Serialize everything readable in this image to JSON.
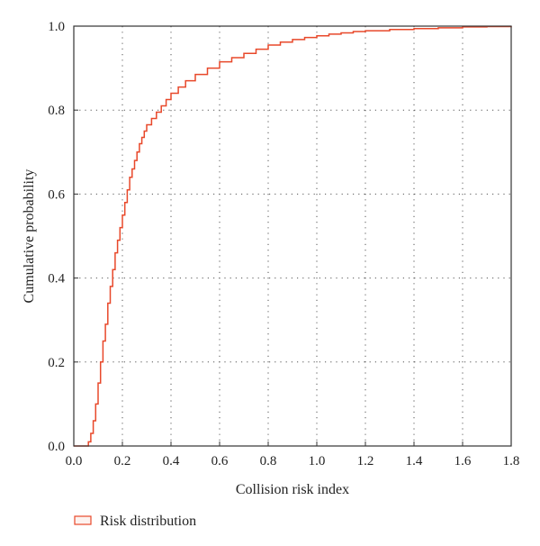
{
  "chart_data": {
    "type": "line",
    "step": true,
    "xlabel": "Collision risk index",
    "ylabel": "Cumulative probability",
    "xlim": [
      0.0,
      1.8
    ],
    "ylim": [
      0.0,
      1.0
    ],
    "xticks": [
      "0.0",
      "0.2",
      "0.4",
      "0.6",
      "0.8",
      "1.0",
      "1.2",
      "1.4",
      "1.6",
      "1.8"
    ],
    "yticks": [
      "0.0",
      "0.2",
      "0.4",
      "0.6",
      "0.8",
      "1.0"
    ],
    "grid": "dotted",
    "legend_position": "bottom-left",
    "series": [
      {
        "name": "Risk distribution",
        "color": "#e8482a",
        "x": [
          0.0,
          0.05,
          0.06,
          0.07,
          0.08,
          0.09,
          0.1,
          0.11,
          0.12,
          0.13,
          0.14,
          0.15,
          0.16,
          0.17,
          0.18,
          0.19,
          0.2,
          0.21,
          0.22,
          0.23,
          0.24,
          0.25,
          0.26,
          0.27,
          0.28,
          0.29,
          0.3,
          0.32,
          0.34,
          0.36,
          0.38,
          0.4,
          0.43,
          0.46,
          0.5,
          0.55,
          0.6,
          0.65,
          0.7,
          0.75,
          0.8,
          0.85,
          0.9,
          0.95,
          1.0,
          1.05,
          1.1,
          1.15,
          1.2,
          1.3,
          1.4,
          1.5,
          1.6,
          1.7,
          1.8
        ],
        "y": [
          0.0,
          0.0,
          0.01,
          0.03,
          0.06,
          0.1,
          0.15,
          0.2,
          0.25,
          0.29,
          0.34,
          0.38,
          0.42,
          0.46,
          0.49,
          0.52,
          0.55,
          0.58,
          0.61,
          0.64,
          0.66,
          0.68,
          0.7,
          0.72,
          0.735,
          0.75,
          0.765,
          0.78,
          0.795,
          0.81,
          0.825,
          0.84,
          0.855,
          0.87,
          0.885,
          0.9,
          0.915,
          0.925,
          0.935,
          0.945,
          0.955,
          0.962,
          0.968,
          0.973,
          0.977,
          0.981,
          0.984,
          0.987,
          0.989,
          0.992,
          0.994,
          0.996,
          0.998,
          0.999,
          1.0
        ]
      }
    ]
  }
}
